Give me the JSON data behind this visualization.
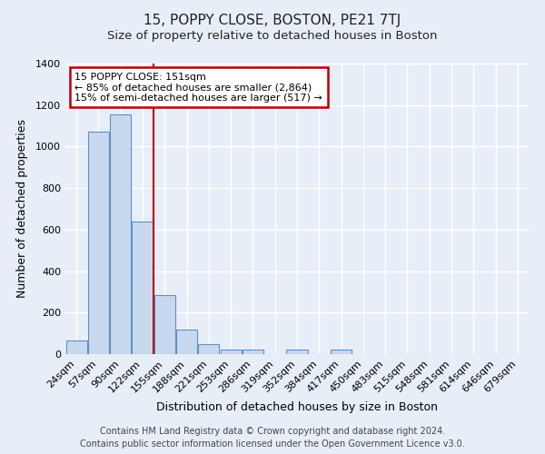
{
  "title": "15, POPPY CLOSE, BOSTON, PE21 7TJ",
  "subtitle": "Size of property relative to detached houses in Boston",
  "xlabel": "Distribution of detached houses by size in Boston",
  "ylabel": "Number of detached properties",
  "bar_labels": [
    "24sqm",
    "57sqm",
    "90sqm",
    "122sqm",
    "155sqm",
    "188sqm",
    "221sqm",
    "253sqm",
    "286sqm",
    "319sqm",
    "352sqm",
    "384sqm",
    "417sqm",
    "450sqm",
    "483sqm",
    "515sqm",
    "548sqm",
    "581sqm",
    "614sqm",
    "646sqm",
    "679sqm"
  ],
  "bar_values": [
    65,
    1070,
    1155,
    640,
    285,
    120,
    48,
    20,
    20,
    0,
    20,
    0,
    20,
    0,
    0,
    0,
    0,
    0,
    0,
    0,
    0
  ],
  "bar_color": "#c8d8ee",
  "bar_edge_color": "#6090c0",
  "vline_x": 3.5,
  "vline_color": "#bb0000",
  "box_text_line1": "15 POPPY CLOSE: 151sqm",
  "box_text_line2": "← 85% of detached houses are smaller (2,864)",
  "box_text_line3": "15% of semi-detached houses are larger (517) →",
  "box_color": "#ffffff",
  "box_edge_color": "#bb0000",
  "ylim": [
    0,
    1400
  ],
  "yticks": [
    0,
    200,
    400,
    600,
    800,
    1000,
    1200,
    1400
  ],
  "footer_line1": "Contains HM Land Registry data © Crown copyright and database right 2024.",
  "footer_line2": "Contains public sector information licensed under the Open Government Licence v3.0.",
  "bg_color": "#e8eef8",
  "plot_bg_color": "#e8eef8",
  "title_fontsize": 11,
  "xlabel_fontsize": 9,
  "ylabel_fontsize": 9,
  "footer_fontsize": 7,
  "tick_fontsize": 8
}
